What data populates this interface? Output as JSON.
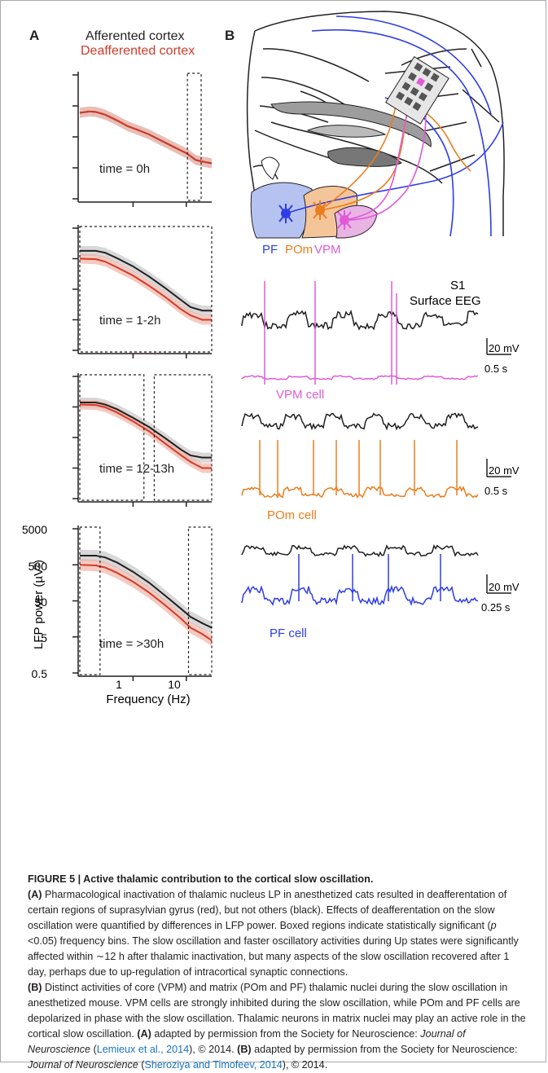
{
  "panel_a": {
    "label": "A",
    "legend_afferented": "Afferented cortex",
    "legend_deafferented": "Deafferented cortex",
    "plots": [
      {
        "time_label": "time = 0h",
        "afferented": [
          [
            0.1,
            300
          ],
          [
            0.15,
            330
          ],
          [
            0.2,
            320
          ],
          [
            0.3,
            260
          ],
          [
            0.5,
            170
          ],
          [
            0.8,
            110
          ],
          [
            1.2,
            85
          ],
          [
            2,
            60
          ],
          [
            3,
            42
          ],
          [
            5,
            27
          ],
          [
            8,
            18
          ],
          [
            10,
            15
          ],
          [
            15,
            9
          ],
          [
            20,
            8
          ],
          [
            30,
            7
          ]
        ],
        "deafferented": [
          [
            0.1,
            300
          ],
          [
            0.15,
            330
          ],
          [
            0.2,
            320
          ],
          [
            0.3,
            260
          ],
          [
            0.5,
            170
          ],
          [
            0.8,
            110
          ],
          [
            1.2,
            85
          ],
          [
            2,
            60
          ],
          [
            3,
            42
          ],
          [
            5,
            27
          ],
          [
            8,
            18
          ],
          [
            10,
            15
          ],
          [
            15,
            9
          ],
          [
            20,
            8
          ],
          [
            30,
            7
          ]
        ],
        "boxes": [
          [
            10.5,
            19
          ]
        ]
      },
      {
        "time_label": "time = 1-2h",
        "afferented": [
          [
            0.1,
            900
          ],
          [
            0.2,
            900
          ],
          [
            0.3,
            780
          ],
          [
            0.5,
            520
          ],
          [
            1,
            280
          ],
          [
            2,
            130
          ],
          [
            4,
            55
          ],
          [
            8,
            22
          ],
          [
            12,
            13
          ],
          [
            20,
            10
          ],
          [
            30,
            10
          ]
        ],
        "deafferented": [
          [
            0.1,
            500
          ],
          [
            0.2,
            480
          ],
          [
            0.3,
            400
          ],
          [
            0.5,
            260
          ],
          [
            1,
            140
          ],
          [
            2,
            65
          ],
          [
            4,
            28
          ],
          [
            8,
            11
          ],
          [
            12,
            7
          ],
          [
            20,
            5
          ],
          [
            30,
            5
          ]
        ],
        "boxes": [
          [
            0.1,
            30
          ]
        ]
      },
      {
        "time_label": "time = 12-13h",
        "afferented": [
          [
            0.1,
            700
          ],
          [
            0.2,
            700
          ],
          [
            0.3,
            600
          ],
          [
            0.5,
            420
          ],
          [
            1,
            220
          ],
          [
            2,
            110
          ],
          [
            4,
            48
          ],
          [
            8,
            20
          ],
          [
            12,
            13
          ],
          [
            20,
            11
          ],
          [
            30,
            11
          ]
        ],
        "deafferented": [
          [
            0.1,
            600
          ],
          [
            0.2,
            580
          ],
          [
            0.3,
            490
          ],
          [
            0.5,
            330
          ],
          [
            1,
            170
          ],
          [
            2,
            80
          ],
          [
            4,
            32
          ],
          [
            8,
            13
          ],
          [
            12,
            8
          ],
          [
            20,
            5
          ],
          [
            30,
            5
          ]
        ],
        "boxes": [
          [
            0.1,
            1.6
          ],
          [
            2.5,
            30
          ]
        ]
      },
      {
        "time_label": "time = >30h",
        "afferented": [
          [
            0.1,
            900
          ],
          [
            0.2,
            900
          ],
          [
            0.3,
            800
          ],
          [
            0.5,
            580
          ],
          [
            1,
            320
          ],
          [
            2,
            160
          ],
          [
            4,
            70
          ],
          [
            8,
            30
          ],
          [
            12,
            18
          ],
          [
            20,
            12
          ],
          [
            30,
            9
          ]
        ],
        "deafferented": [
          [
            0.1,
            500
          ],
          [
            0.2,
            480
          ],
          [
            0.3,
            420
          ],
          [
            0.5,
            300
          ],
          [
            1,
            170
          ],
          [
            2,
            85
          ],
          [
            4,
            38
          ],
          [
            8,
            16
          ],
          [
            12,
            9
          ],
          [
            20,
            6
          ],
          [
            30,
            4
          ]
        ],
        "boxes": [
          [
            0.1,
            0.24
          ],
          [
            11,
            30
          ]
        ]
      }
    ],
    "ylabel": "LFP power (µV²)",
    "yticks": [
      "5000",
      "500",
      "50",
      "5",
      "0.5"
    ],
    "xticks": [
      "1",
      "10"
    ],
    "xlabel": "Frequency (Hz)"
  },
  "panel_b": {
    "label": "B",
    "nuclei": [
      {
        "name": "PF",
        "color": "#2e3de6"
      },
      {
        "name": "POm",
        "color": "#ea7d1e"
      },
      {
        "name": "VPM",
        "color": "#e05ad8"
      }
    ],
    "region_label": "S1",
    "eeg_label": "Surface EEG",
    "cells": [
      {
        "name": "VPM cell",
        "color": "#e05ad8",
        "scale_v": "20 mV",
        "scale_t": "0.5 s"
      },
      {
        "name": "POm cell",
        "color": "#ea7d1e",
        "scale_v": "20 mV",
        "scale_t": "0.5 s"
      },
      {
        "name": "PF cell",
        "color": "#2e3de6",
        "scale_v": "20 mV",
        "scale_t": "0.25 s"
      }
    ]
  },
  "caption": {
    "figure_title": "FIGURE 5 | Active thalamic contribution to the cortical slow oscillation.",
    "a_ref": "(A)",
    "a_text_1": " Pharmacological inactivation of thalamic nucleus LP in anesthetized cats resulted in deafferentation of certain regions of suprasylvian gyrus (red), but not others (black). Effects of deafferentation on the slow oscillation were quantified by differences in LFP power. Boxed regions indicate statistically significant (",
    "p_symbol": "p",
    "a_text_2": " <0.05) frequency bins. The slow oscillation and faster oscillatory activities during Up states were significantly affected within ∼12 h after thalamic inactivation, but many aspects of the slow oscillation recovered after 1 day, perhaps due to up-regulation of intracortical synaptic connections.",
    "b_ref": "(B)",
    "b_text": " Distinct activities of core (VPM) and matrix (POm and PF) thalamic nuclei during the slow oscillation in anesthetized mouse. VPM cells are strongly inhibited during the slow oscillation, while POm and PF cells are depolarized in phase with the slow oscillation. Thalamic neurons in matrix nuclei may play an active role in the cortical slow oscillation.",
    "a_ref_2": "(A)",
    "permission_a": " adapted by permission from the Society for Neuroscience: ",
    "journal_a": "Journal of Neuroscience",
    "cite_a_open": " (",
    "cite_a": "Lemieux et al., 2014",
    "cite_a_close": "), © 2014.",
    "b_ref_2": "(B)",
    "permission_b": " adapted by permission from the Society for Neuroscience: ",
    "journal_b": "Journal of Neuroscience",
    "cite_b_open": " (",
    "cite_b": "Sheroziya and Timofeev, 2014",
    "cite_b_close": "), © 2014."
  },
  "colors": {
    "afferented": "#231f20",
    "deafferented": "#d63a27",
    "afferented_band": "#c8c8c8",
    "deafferented_band": "#f0b4a8",
    "link": "#1a75bc"
  }
}
